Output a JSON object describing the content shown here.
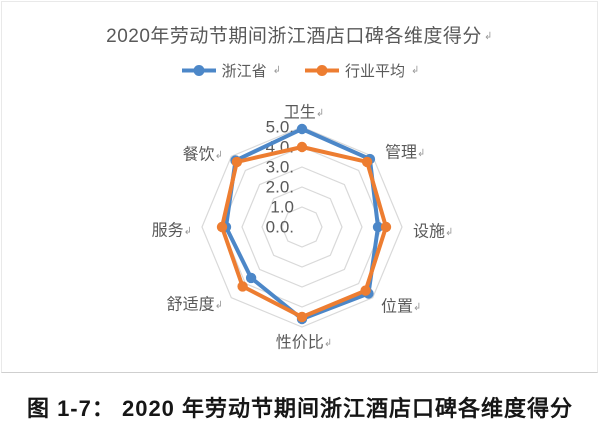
{
  "marks": {
    "paragraph": "↲"
  },
  "panel": {
    "title": "2020年劳动节期间浙江酒店口碑各维度得分"
  },
  "legend": {
    "items": [
      {
        "label": "浙江省",
        "color": "#4C87C8"
      },
      {
        "label": "行业平均",
        "color": "#ED7D31"
      }
    ]
  },
  "chart_data": {
    "type": "radar",
    "title": "2020年劳动节期间浙江酒店口碑各维度得分",
    "categories": [
      "卫生",
      "管理",
      "设施",
      "位置",
      "性价比",
      "舒适度",
      "服务",
      "餐饮"
    ],
    "series": [
      {
        "name": "浙江省",
        "color": "#4C87C8",
        "values": [
          4.9,
          4.8,
          3.8,
          4.7,
          4.6,
          3.6,
          3.8,
          4.7
        ]
      },
      {
        "name": "行业平均",
        "color": "#ED7D31",
        "values": [
          4.0,
          4.6,
          4.2,
          4.5,
          4.5,
          4.2,
          4.0,
          4.6
        ]
      }
    ],
    "rlim": [
      0,
      5
    ],
    "ring_interval": 1.0,
    "tick_labels": [
      "5.0.",
      "4.0.",
      "3.0.",
      "2.0.",
      "1.0",
      "0.0."
    ],
    "grid": true,
    "grid_shape": "octagon",
    "grid_color": "#D9D9D9",
    "label_color": "#595959",
    "legend_position": "top"
  },
  "caption": {
    "text": "图 1-7：  2020 年劳动节期间浙江酒店口碑各维度得分"
  }
}
